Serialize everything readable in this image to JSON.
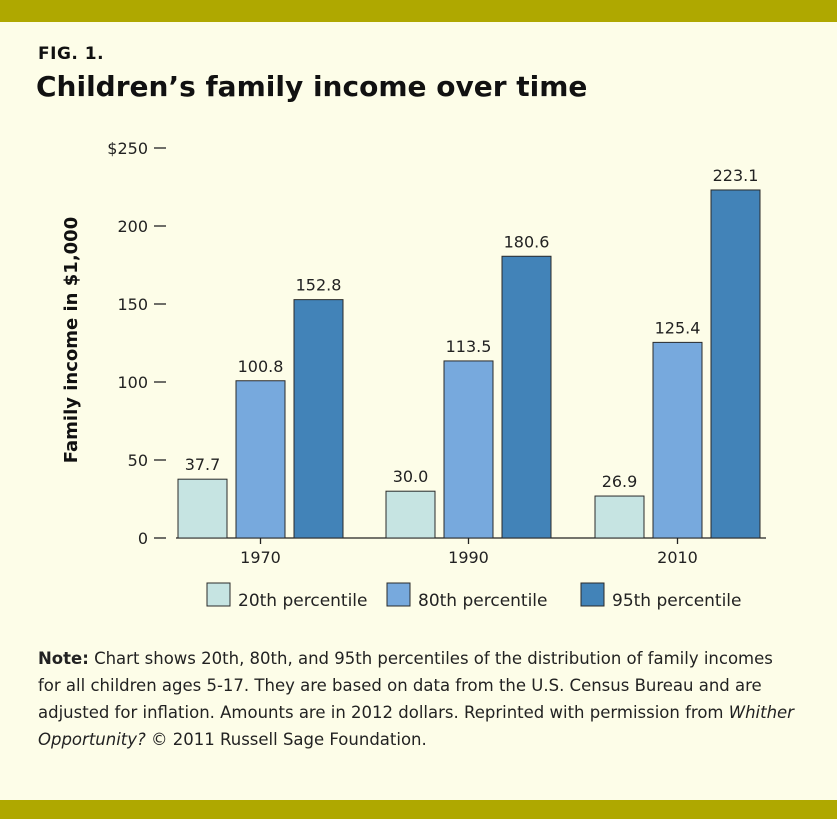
{
  "figure": {
    "label": "FIG. 1.",
    "title": "Children’s family income over time"
  },
  "colors": {
    "band": "#afa800",
    "background": "#fdfde8",
    "p20": "#c6e4e2",
    "p80": "#77a9dd",
    "p95": "#4283b8"
  },
  "chart_data": {
    "type": "bar",
    "title": "Children’s family income over time",
    "ylabel": "Family income in $1,000",
    "xlabel": "",
    "ylim": [
      0,
      250
    ],
    "yticks": [
      {
        "value": 0,
        "label": "0"
      },
      {
        "value": 50,
        "label": "50"
      },
      {
        "value": 100,
        "label": "100"
      },
      {
        "value": 150,
        "label": "150"
      },
      {
        "value": 200,
        "label": "200"
      },
      {
        "value": 250,
        "label": "$250"
      }
    ],
    "categories": [
      "1970",
      "1990",
      "2010"
    ],
    "series": [
      {
        "name": "20th percentile",
        "color": "#c6e4e2",
        "values": [
          37.7,
          30.0,
          26.9
        ],
        "labels": [
          "37.7",
          "30.0",
          "26.9"
        ]
      },
      {
        "name": "80th percentile",
        "color": "#77a9dd",
        "values": [
          100.8,
          113.5,
          125.4
        ],
        "labels": [
          "100.8",
          "113.5",
          "125.4"
        ]
      },
      {
        "name": "95th percentile",
        "color": "#4283b8",
        "values": [
          152.8,
          180.6,
          223.1
        ],
        "labels": [
          "152.8",
          "180.6",
          "223.1"
        ]
      }
    ],
    "legend": "bottom"
  },
  "note": {
    "lead": "Note:",
    "text": " Chart shows 20th, 80th, and 95th percentiles of the distribution of family incomes for all children ages 5-17. They are based on data from the U.S. Census Bureau  and are adjusted for inflation. Amounts are in 2012 dollars. Reprinted with permission from ",
    "italic": "Whither Opportunity?",
    "tail": " © 2011 Russell Sage Foundation."
  }
}
